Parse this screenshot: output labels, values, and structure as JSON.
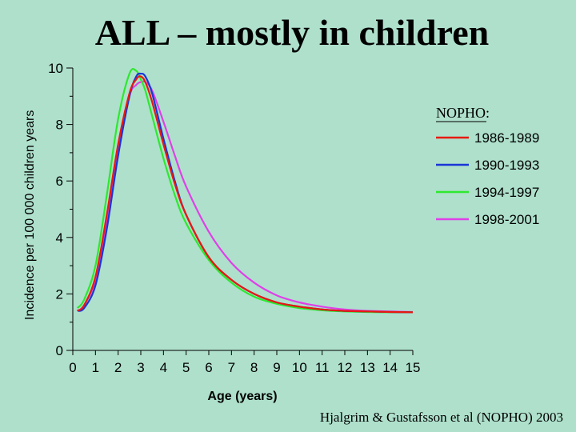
{
  "title": "ALL – mostly in children",
  "citation": "Hjalgrim & Gustafsson et al (NOPHO) 2003",
  "chart_data": {
    "type": "line",
    "title": "ALL – mostly in children",
    "xlabel": "Age (years)",
    "ylabel": "Incidence per 100 000 children years",
    "xlim": [
      0,
      15
    ],
    "ylim": [
      0,
      10
    ],
    "x_ticks": [
      "0",
      "1",
      "2",
      "3",
      "4",
      "5",
      "6",
      "7",
      "8",
      "9",
      "10",
      "11",
      "12",
      "13",
      "14",
      "15"
    ],
    "y_ticks": [
      "0",
      "2",
      "4",
      "6",
      "8",
      "10"
    ],
    "grid": false,
    "legend": {
      "title": "NOPHO:",
      "position": "right"
    },
    "x": [
      0.2,
      0.5,
      1.0,
      1.5,
      2.0,
      2.5,
      2.8,
      3.0,
      3.2,
      3.5,
      4.0,
      4.5,
      5.0,
      6.0,
      7.0,
      8.0,
      9.0,
      10.0,
      11.0,
      12.0,
      13.0,
      14.0,
      15.0
    ],
    "series": [
      {
        "name": "1986-1989",
        "color": "#e8190f",
        "values": [
          1.4,
          1.6,
          2.6,
          4.8,
          7.3,
          9.1,
          9.6,
          9.7,
          9.5,
          8.8,
          7.3,
          5.9,
          4.8,
          3.3,
          2.5,
          2.0,
          1.7,
          1.55,
          1.45,
          1.4,
          1.38,
          1.36,
          1.35
        ]
      },
      {
        "name": "1990-1993",
        "color": "#1a35d8",
        "values": [
          1.4,
          1.5,
          2.3,
          4.3,
          6.9,
          9.0,
          9.7,
          9.8,
          9.7,
          9.1,
          7.5,
          6.0,
          4.8,
          3.3,
          2.5,
          2.0,
          1.7,
          1.55,
          1.45,
          1.4,
          1.38,
          1.36,
          1.35
        ]
      },
      {
        "name": "1994-1997",
        "color": "#2ee82e",
        "values": [
          1.5,
          1.8,
          3.0,
          5.5,
          8.2,
          9.8,
          9.9,
          9.6,
          9.2,
          8.3,
          6.8,
          5.5,
          4.5,
          3.2,
          2.4,
          1.9,
          1.65,
          1.5,
          1.42,
          1.38,
          1.36,
          1.35,
          1.35
        ]
      },
      {
        "name": "1998-2001",
        "color": "#e040e8",
        "values": [
          1.4,
          1.6,
          2.5,
          4.5,
          7.0,
          9.0,
          9.4,
          9.5,
          9.5,
          9.2,
          8.1,
          6.9,
          5.8,
          4.2,
          3.1,
          2.4,
          1.95,
          1.7,
          1.55,
          1.45,
          1.4,
          1.38,
          1.36
        ]
      }
    ]
  }
}
